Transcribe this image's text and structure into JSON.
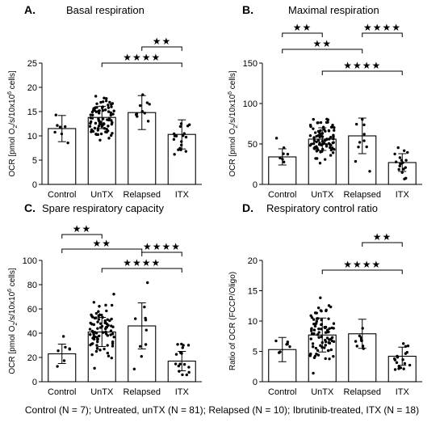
{
  "caption": "Control (N = 7); Untreated, unTX (N = 81); Relapsed (N = 10); Ibrutinib-treated, ITX (N = 18)",
  "chart_data": [
    {
      "type": "bar",
      "letter": "A.",
      "title": "Basal respiration",
      "ylabel": "OCR [pmol O2/s/10x10^6 cells]",
      "ylabel_parts": [
        "OCR [pmol O",
        "2",
        "/s/10x10",
        "6",
        " cells]"
      ],
      "ylim": [
        0,
        25
      ],
      "yticks": [
        0,
        5,
        10,
        15,
        20,
        25
      ],
      "categories": [
        "Control",
        "UnTX",
        "Relapsed",
        "ITX"
      ],
      "means": [
        11.5,
        13.8,
        14.8,
        10.3
      ],
      "sd": [
        2.7,
        2.3,
        3.5,
        3.0
      ],
      "n": [
        7,
        81,
        10,
        18
      ],
      "significance": [
        {
          "from": 1,
          "to": 3,
          "label": "★★★★"
        },
        {
          "from": 2,
          "to": 3,
          "label": "★★"
        }
      ]
    },
    {
      "type": "bar",
      "letter": "B.",
      "title": "Maximal respiration",
      "ylabel": "OCR [pmol O2/s/10x10^6 cells]",
      "ylabel_parts": [
        "OCR [pmol O",
        "2",
        "/s/10x10",
        "6",
        " cells]"
      ],
      "ylim": [
        0,
        150
      ],
      "yticks": [
        0,
        50,
        100,
        150
      ],
      "categories": [
        "Control",
        "UnTX",
        "Relapsed",
        "ITX"
      ],
      "means": [
        34,
        56,
        60,
        27
      ],
      "sd": [
        10,
        14,
        22,
        11
      ],
      "n": [
        7,
        81,
        10,
        18
      ],
      "significance": [
        {
          "from": 1,
          "to": 3,
          "label": "★★★★"
        },
        {
          "from": 0,
          "to": 2,
          "label": "★★"
        },
        {
          "from": 0,
          "to": 1,
          "label": "★★"
        },
        {
          "from": 2,
          "to": 3,
          "label": "★★★★"
        }
      ]
    },
    {
      "type": "bar",
      "letter": "C.",
      "title": "Spare respiratory capacity",
      "ylabel": "OCR [pmol O2/s/10x10^6 cells]",
      "ylabel_parts": [
        "OCR [pmol O",
        "2",
        "/s/10x10",
        "6",
        " cells]"
      ],
      "ylim": [
        0,
        100
      ],
      "yticks": [
        0,
        20,
        40,
        60,
        80,
        100
      ],
      "categories": [
        "Control",
        "UnTX",
        "Relapsed",
        "ITX"
      ],
      "means": [
        23,
        41,
        46,
        17
      ],
      "sd": [
        8,
        12,
        19,
        8
      ],
      "n": [
        7,
        81,
        10,
        18
      ],
      "significance": [
        {
          "from": 1,
          "to": 3,
          "label": "★★★★"
        },
        {
          "from": 0,
          "to": 2,
          "label": "★★"
        },
        {
          "from": 2,
          "to": 3,
          "label": "★★★★"
        },
        {
          "from": 0,
          "to": 1,
          "label": "★★"
        }
      ]
    },
    {
      "type": "bar",
      "letter": "D.",
      "title": "Respiratory control ratio",
      "ylabel": "Ratio of OCR (FCCP/Oligo)",
      "ylabel_parts": [
        "Ratio of OCR (FCCP/Oligo)"
      ],
      "ylim": [
        0,
        20
      ],
      "yticks": [
        0,
        5,
        10,
        15,
        20
      ],
      "categories": [
        "Control",
        "UnTX",
        "Relapsed",
        "ITX"
      ],
      "means": [
        5.3,
        7.7,
        7.9,
        4.2
      ],
      "sd": [
        2.0,
        2.8,
        2.4,
        1.5
      ],
      "n": [
        7,
        81,
        10,
        18
      ],
      "significance": [
        {
          "from": 1,
          "to": 3,
          "label": "★★★★"
        },
        {
          "from": 2,
          "to": 3,
          "label": "★★"
        }
      ]
    }
  ]
}
